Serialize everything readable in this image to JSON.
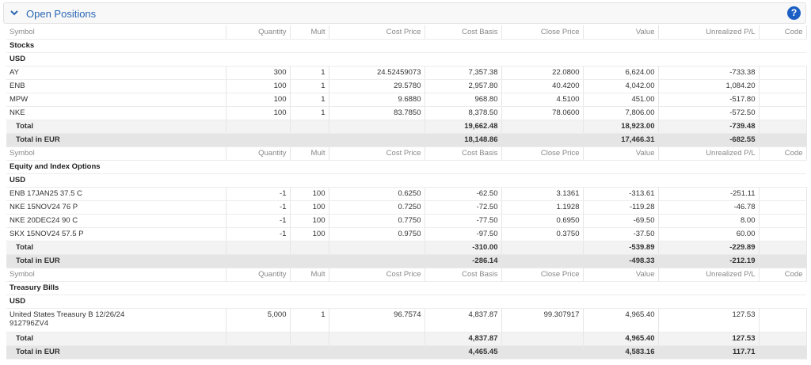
{
  "header": {
    "title": "Open Positions",
    "help": "?"
  },
  "columns": [
    "Symbol",
    "Quantity",
    "Mult",
    "Cost Price",
    "Cost Basis",
    "Close Price",
    "Value",
    "Unrealized P/L",
    "Code"
  ],
  "sections": [
    {
      "title": "Stocks",
      "currency": "USD",
      "rows": [
        [
          "AY",
          "300",
          "1",
          "24.52459073",
          "7,357.38",
          "22.0800",
          "6,624.00",
          "-733.38"
        ],
        [
          "ENB",
          "100",
          "1",
          "29.5780",
          "2,957.80",
          "40.4200",
          "4,042.00",
          "1,084.20"
        ],
        [
          "MPW",
          "100",
          "1",
          "9.6880",
          "968.80",
          "4.5100",
          "451.00",
          "-517.80"
        ],
        [
          "NKE",
          "100",
          "1",
          "83.7850",
          "8,378.50",
          "78.0600",
          "7,806.00",
          "-572.50"
        ]
      ],
      "total": {
        "label": "Total",
        "cost_basis": "19,662.48",
        "value": "18,923.00",
        "unrealized_pl": "-739.48"
      },
      "total_eur": {
        "label": "Total in EUR",
        "cost_basis": "18,148.86",
        "value": "17,466.31",
        "unrealized_pl": "-682.55"
      }
    },
    {
      "title": "Equity and Index Options",
      "currency": "USD",
      "rows": [
        [
          "ENB 17JAN25 37.5 C",
          "-1",
          "100",
          "0.6250",
          "-62.50",
          "3.1361",
          "-313.61",
          "-251.11"
        ],
        [
          "NKE 15NOV24 76 P",
          "-1",
          "100",
          "0.7250",
          "-72.50",
          "1.1928",
          "-119.28",
          "-46.78"
        ],
        [
          "NKE 20DEC24 90 C",
          "-1",
          "100",
          "0.7750",
          "-77.50",
          "0.6950",
          "-69.50",
          "8.00"
        ],
        [
          "SKX 15NOV24 57.5 P",
          "-1",
          "100",
          "0.9750",
          "-97.50",
          "0.3750",
          "-37.50",
          "60.00"
        ]
      ],
      "total": {
        "label": "Total",
        "cost_basis": "-310.00",
        "value": "-539.89",
        "unrealized_pl": "-229.89"
      },
      "total_eur": {
        "label": "Total in EUR",
        "cost_basis": "-286.14",
        "value": "-498.33",
        "unrealized_pl": "-212.19"
      }
    },
    {
      "title": "Treasury Bills",
      "currency": "USD",
      "rows": [
        [
          "United States Treasury B 12/26/24\n912796ZV4",
          "5,000",
          "1",
          "96.7574",
          "4,837.87",
          "99.307917",
          "4,965.40",
          "127.53"
        ]
      ],
      "total": {
        "label": "Total",
        "cost_basis": "4,837.87",
        "value": "4,965.40",
        "unrealized_pl": "127.53"
      },
      "total_eur": {
        "label": "Total in EUR",
        "cost_basis": "4,465.45",
        "value": "4,583.16",
        "unrealized_pl": "117.71"
      }
    }
  ]
}
